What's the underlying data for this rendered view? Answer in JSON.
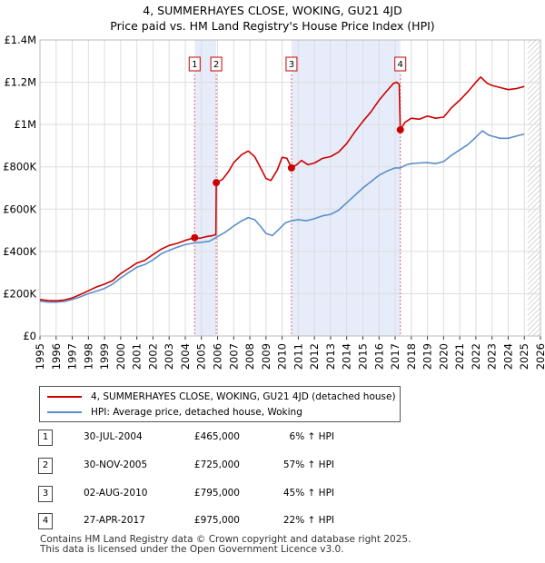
{
  "chart_data": {
    "type": "line",
    "title": "4, SUMMERHAYES CLOSE, WOKING, GU21 4JD",
    "subtitle": "Price paid vs. HM Land Registry's House Price Index (HPI)",
    "xlim": [
      1995,
      2026
    ],
    "ylim": [
      0,
      1400000
    ],
    "x_ticks": [
      "1995",
      "1996",
      "1997",
      "1998",
      "1999",
      "2000",
      "2001",
      "2002",
      "2003",
      "2004",
      "2005",
      "2006",
      "2007",
      "2008",
      "2009",
      "2010",
      "2011",
      "2012",
      "2013",
      "2014",
      "2015",
      "2016",
      "2017",
      "2018",
      "2019",
      "2020",
      "2021",
      "2022",
      "2023",
      "2024",
      "2025",
      "2026"
    ],
    "y_ticks": [
      {
        "value": 0,
        "label": "£0"
      },
      {
        "value": 200000,
        "label": "£200K"
      },
      {
        "value": 400000,
        "label": "£400K"
      },
      {
        "value": 600000,
        "label": "£600K"
      },
      {
        "value": 800000,
        "label": "£800K"
      },
      {
        "value": 1000000,
        "label": "£1M"
      },
      {
        "value": 1200000,
        "label": "£1.2M"
      },
      {
        "value": 1400000,
        "label": "£1.4M"
      }
    ],
    "grid": true,
    "shaded_ranges": [
      [
        2004.58,
        2005.92
      ],
      [
        2010.58,
        2017.32
      ]
    ],
    "forecast_from": 2025.2,
    "series": [
      {
        "name": "4, SUMMERHAYES CLOSE, WOKING, GU21 4JD (detached house)",
        "color": "#cc0000",
        "points": [
          [
            1995,
            172000
          ],
          [
            1995.5,
            168000
          ],
          [
            1996,
            166000
          ],
          [
            1996.5,
            170000
          ],
          [
            1997,
            180000
          ],
          [
            1997.5,
            196000
          ],
          [
            1998,
            214000
          ],
          [
            1998.5,
            232000
          ],
          [
            1999,
            245000
          ],
          [
            1999.5,
            262000
          ],
          [
            2000,
            295000
          ],
          [
            2000.5,
            320000
          ],
          [
            2001,
            345000
          ],
          [
            2001.5,
            358000
          ],
          [
            2002,
            385000
          ],
          [
            2002.5,
            410000
          ],
          [
            2003,
            428000
          ],
          [
            2003.5,
            438000
          ],
          [
            2004,
            452000
          ],
          [
            2004.58,
            465000
          ],
          [
            2004.9,
            462000
          ],
          [
            2005.3,
            470000
          ],
          [
            2005.7,
            475000
          ],
          [
            2005.9,
            480000
          ],
          [
            2005.92,
            725000
          ],
          [
            2006.3,
            740000
          ],
          [
            2006.7,
            780000
          ],
          [
            2007,
            820000
          ],
          [
            2007.5,
            858000
          ],
          [
            2007.9,
            875000
          ],
          [
            2008.3,
            848000
          ],
          [
            2008.7,
            790000
          ],
          [
            2009,
            745000
          ],
          [
            2009.3,
            735000
          ],
          [
            2009.7,
            785000
          ],
          [
            2010,
            845000
          ],
          [
            2010.3,
            840000
          ],
          [
            2010.58,
            795000
          ],
          [
            2010.9,
            810000
          ],
          [
            2011.2,
            830000
          ],
          [
            2011.6,
            810000
          ],
          [
            2012,
            818000
          ],
          [
            2012.5,
            840000
          ],
          [
            2013,
            848000
          ],
          [
            2013.5,
            870000
          ],
          [
            2014,
            910000
          ],
          [
            2014.5,
            965000
          ],
          [
            2015,
            1015000
          ],
          [
            2015.5,
            1060000
          ],
          [
            2016,
            1115000
          ],
          [
            2016.5,
            1160000
          ],
          [
            2016.9,
            1195000
          ],
          [
            2017.1,
            1200000
          ],
          [
            2017.25,
            1190000
          ],
          [
            2017.32,
            975000
          ],
          [
            2017.6,
            1010000
          ],
          [
            2018,
            1030000
          ],
          [
            2018.5,
            1025000
          ],
          [
            2019,
            1040000
          ],
          [
            2019.5,
            1030000
          ],
          [
            2020,
            1035000
          ],
          [
            2020.5,
            1080000
          ],
          [
            2021,
            1115000
          ],
          [
            2021.5,
            1155000
          ],
          [
            2022,
            1200000
          ],
          [
            2022.3,
            1225000
          ],
          [
            2022.7,
            1195000
          ],
          [
            2023,
            1185000
          ],
          [
            2023.5,
            1175000
          ],
          [
            2024,
            1165000
          ],
          [
            2024.5,
            1170000
          ],
          [
            2025,
            1180000
          ]
        ]
      },
      {
        "name": "HPI: Average price, detached house, Woking",
        "color": "#5b8ec9",
        "points": [
          [
            1995,
            165000
          ],
          [
            1995.5,
            160000
          ],
          [
            1996,
            160000
          ],
          [
            1996.5,
            163000
          ],
          [
            1997,
            172000
          ],
          [
            1997.5,
            185000
          ],
          [
            1998,
            200000
          ],
          [
            1998.5,
            212000
          ],
          [
            1999,
            225000
          ],
          [
            1999.5,
            245000
          ],
          [
            2000,
            275000
          ],
          [
            2000.5,
            300000
          ],
          [
            2001,
            325000
          ],
          [
            2001.5,
            338000
          ],
          [
            2002,
            360000
          ],
          [
            2002.5,
            388000
          ],
          [
            2003,
            405000
          ],
          [
            2003.5,
            420000
          ],
          [
            2004,
            432000
          ],
          [
            2004.58,
            440000
          ],
          [
            2005,
            443000
          ],
          [
            2005.5,
            448000
          ],
          [
            2006,
            470000
          ],
          [
            2006.5,
            492000
          ],
          [
            2007,
            520000
          ],
          [
            2007.5,
            545000
          ],
          [
            2007.9,
            560000
          ],
          [
            2008.3,
            550000
          ],
          [
            2008.7,
            515000
          ],
          [
            2009,
            485000
          ],
          [
            2009.4,
            475000
          ],
          [
            2009.8,
            505000
          ],
          [
            2010.2,
            535000
          ],
          [
            2010.58,
            545000
          ],
          [
            2011,
            550000
          ],
          [
            2011.5,
            545000
          ],
          [
            2012,
            555000
          ],
          [
            2012.5,
            568000
          ],
          [
            2013,
            575000
          ],
          [
            2013.5,
            595000
          ],
          [
            2014,
            630000
          ],
          [
            2014.5,
            665000
          ],
          [
            2015,
            700000
          ],
          [
            2015.5,
            730000
          ],
          [
            2016,
            760000
          ],
          [
            2016.5,
            780000
          ],
          [
            2017,
            795000
          ],
          [
            2017.32,
            795000
          ],
          [
            2017.7,
            810000
          ],
          [
            2018,
            815000
          ],
          [
            2018.5,
            818000
          ],
          [
            2019,
            820000
          ],
          [
            2019.5,
            815000
          ],
          [
            2020,
            825000
          ],
          [
            2020.5,
            855000
          ],
          [
            2021,
            880000
          ],
          [
            2021.5,
            905000
          ],
          [
            2022,
            940000
          ],
          [
            2022.4,
            970000
          ],
          [
            2022.8,
            950000
          ],
          [
            2023,
            945000
          ],
          [
            2023.5,
            935000
          ],
          [
            2024,
            935000
          ],
          [
            2024.5,
            945000
          ],
          [
            2025,
            955000
          ]
        ]
      }
    ],
    "sales": [
      {
        "id": "1",
        "date": "30-JUL-2004",
        "x": 2004.58,
        "price": 465000,
        "price_label": "£465,000",
        "hpi": "6% ↑ HPI"
      },
      {
        "id": "2",
        "date": "30-NOV-2005",
        "x": 2005.92,
        "price": 725000,
        "price_label": "£725,000",
        "hpi": "57% ↑ HPI"
      },
      {
        "id": "3",
        "date": "02-AUG-2010",
        "x": 2010.58,
        "price": 795000,
        "price_label": "£795,000",
        "hpi": "45% ↑ HPI"
      },
      {
        "id": "4",
        "date": "27-APR-2017",
        "x": 2017.32,
        "price": 975000,
        "price_label": "£975,000",
        "hpi": "22% ↑ HPI"
      }
    ]
  },
  "legend": {
    "property_label": "4, SUMMERHAYES CLOSE, WOKING, GU21 4JD (detached house)",
    "hpi_label": "HPI: Average price, detached house, Woking"
  },
  "footer": {
    "line1": "Contains HM Land Registry data © Crown copyright and database right 2025.",
    "line2": "This data is licensed under the Open Government Licence v3.0."
  }
}
